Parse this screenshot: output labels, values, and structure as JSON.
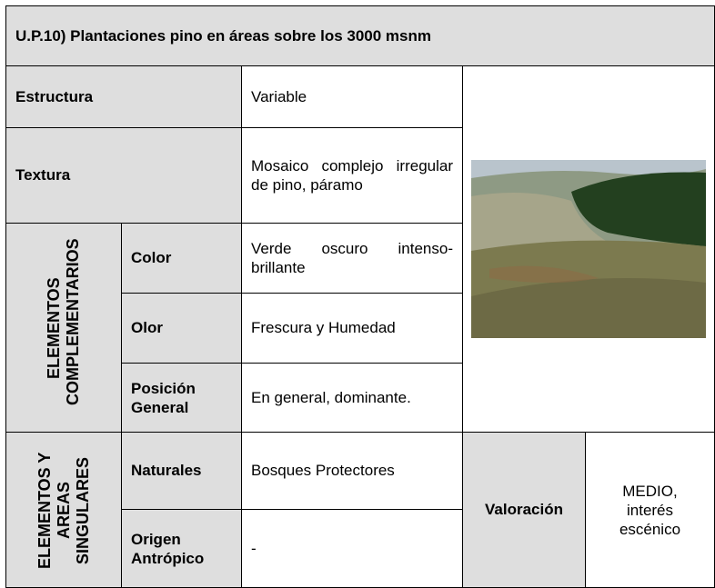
{
  "title": "U.P.10) Plantaciones pino en áreas sobre los 3000 msnm",
  "rows": [
    {
      "label": "Estructura",
      "value": "Variable"
    },
    {
      "label": "Textura",
      "value": "Mosaico complejo irregular de pino, páramo"
    }
  ],
  "complementarios": {
    "group": "ELEMENTOS COMPLEMENTARIOS",
    "items": [
      {
        "label": "Color",
        "value": "Verde oscuro intenso-brillante"
      },
      {
        "label": "Olor",
        "value": "Frescura y Humedad"
      },
      {
        "label": "Posición General",
        "value": "En general, dominante."
      }
    ]
  },
  "singulares": {
    "group": "ELEMENTOS Y AREAS SINGULARES",
    "items": [
      {
        "label": "Naturales",
        "value": "Bosques Protectores"
      },
      {
        "label": "Origen Antrópico",
        "value": "-"
      }
    ]
  },
  "valoracion": {
    "label": "Valoración",
    "value": "MEDIO, interés escénico"
  }
}
